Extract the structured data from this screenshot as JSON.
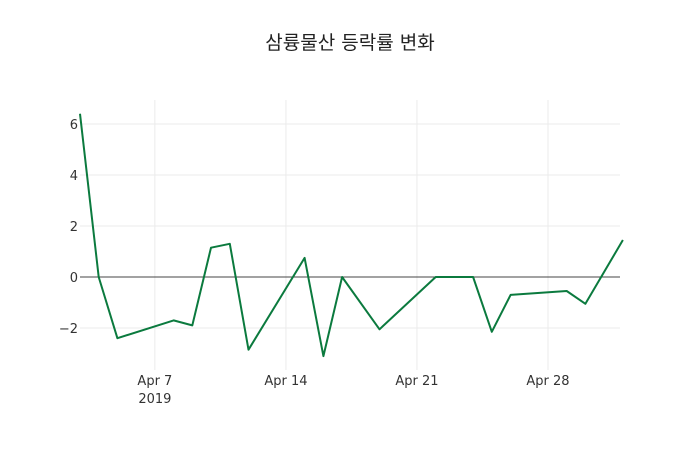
{
  "chart_data": {
    "type": "line",
    "title": "삼륭물산 등락률 변화",
    "xlabel": "",
    "ylabel": "",
    "x": [
      "2019-04-03",
      "2019-04-04",
      "2019-04-05",
      "2019-04-08",
      "2019-04-09",
      "2019-04-10",
      "2019-04-11",
      "2019-04-12",
      "2019-04-15",
      "2019-04-16",
      "2019-04-17",
      "2019-04-19",
      "2019-04-22",
      "2019-04-24",
      "2019-04-25",
      "2019-04-26",
      "2019-04-29",
      "2019-04-30",
      "2019-05-02"
    ],
    "series": [
      {
        "name": "등락률",
        "color": "#0b7a3e",
        "values": [
          6.4,
          0.0,
          -2.4,
          -1.7,
          -1.9,
          1.15,
          1.3,
          -2.85,
          0.75,
          -3.1,
          0.0,
          -2.05,
          0.0,
          0.0,
          -2.15,
          -0.7,
          -0.55,
          -1.05,
          1.45
        ]
      }
    ],
    "y_ticks": [
      "6",
      "4",
      "2",
      "0",
      "−2"
    ],
    "x_ticks": [
      "Apr 7",
      "Apr 14",
      "Apr 21",
      "Apr 28"
    ],
    "x_tick_sub": "2019",
    "ylim": [
      -3.5,
      6.9
    ],
    "grid": true,
    "legend": "none"
  }
}
